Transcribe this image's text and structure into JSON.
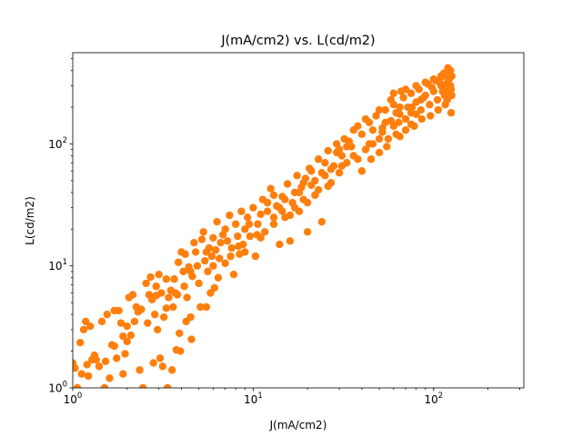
{
  "chart_data": {
    "type": "scatter",
    "title": "J(mA/cm2) vs. L(cd/m2)",
    "xlabel": "J(mA/cm2)",
    "ylabel": "L(cd/m2)",
    "x_scale": "log",
    "y_scale": "log",
    "xlim": [
      1,
      316
    ],
    "ylim": [
      1,
      560
    ],
    "x_ticks": [
      {
        "value": 1,
        "base": "10",
        "exp": "0"
      },
      {
        "value": 10,
        "base": "10",
        "exp": "1"
      },
      {
        "value": 100,
        "base": "10",
        "exp": "2"
      }
    ],
    "y_ticks": [
      {
        "value": 1,
        "base": "10",
        "exp": "0"
      },
      {
        "value": 10,
        "base": "10",
        "exp": "1"
      },
      {
        "value": 100,
        "base": "10",
        "exp": "2"
      }
    ],
    "grid": false,
    "marker_color": "#ff7f0e",
    "series": [
      {
        "points": [
          [
            1.0,
            1.6
          ],
          [
            1.03,
            1.45
          ],
          [
            1.06,
            1.0
          ],
          [
            1.08,
            0.95
          ],
          [
            1.1,
            2.35
          ],
          [
            1.12,
            1.3
          ],
          [
            1.15,
            3.0
          ],
          [
            1.18,
            3.5
          ],
          [
            1.2,
            1.55
          ],
          [
            1.22,
            1.25
          ],
          [
            1.28,
            1.7
          ],
          [
            1.32,
            1.85
          ],
          [
            1.35,
            1.7
          ],
          [
            1.45,
            3.5
          ],
          [
            1.5,
            1.0
          ],
          [
            1.52,
            1.65
          ],
          [
            1.55,
            4.0
          ],
          [
            1.6,
            1.2
          ],
          [
            1.65,
            2.25
          ],
          [
            1.7,
            4.3
          ],
          [
            1.75,
            1.75
          ],
          [
            1.8,
            4.3
          ],
          [
            1.85,
            3.4
          ],
          [
            1.9,
            2.65
          ],
          [
            1.95,
            1.9
          ],
          [
            2.0,
            2.4
          ],
          [
            2.05,
            5.5
          ],
          [
            2.1,
            2.7
          ],
          [
            2.15,
            5.8
          ],
          [
            2.2,
            3.5
          ],
          [
            2.25,
            4.6
          ],
          [
            2.35,
            1.4
          ],
          [
            2.4,
            4.4
          ],
          [
            2.45,
            1.0
          ],
          [
            2.55,
            7.2
          ],
          [
            2.6,
            3.4
          ],
          [
            2.65,
            5.8
          ],
          [
            2.7,
            8.1
          ],
          [
            2.75,
            5.3
          ],
          [
            2.8,
            1.6
          ],
          [
            2.85,
            4.0
          ],
          [
            2.9,
            5.7
          ],
          [
            2.95,
            3.0
          ],
          [
            3.0,
            8.5
          ],
          [
            3.05,
            1.75
          ],
          [
            3.1,
            6.0
          ],
          [
            3.15,
            1.5
          ],
          [
            3.2,
            3.8
          ],
          [
            3.3,
            7.8
          ],
          [
            3.35,
            1.0
          ],
          [
            3.4,
            5.5
          ],
          [
            3.5,
            6.3
          ],
          [
            3.55,
            1.4
          ],
          [
            3.6,
            4.6
          ],
          [
            3.65,
            7.8
          ],
          [
            3.75,
            2.05
          ],
          [
            3.8,
            5.8
          ],
          [
            3.85,
            10.7
          ],
          [
            3.9,
            2.8
          ],
          [
            3.95,
            2.0
          ],
          [
            4.0,
            13.0
          ],
          [
            4.1,
            9.0
          ],
          [
            4.15,
            6.8
          ],
          [
            4.2,
            12.5
          ],
          [
            4.25,
            3.5
          ],
          [
            4.3,
            5.5
          ],
          [
            4.4,
            9.8
          ],
          [
            4.5,
            3.8
          ],
          [
            4.55,
            2.5
          ],
          [
            4.6,
            8.2
          ],
          [
            4.7,
            15.5
          ],
          [
            4.8,
            13.0
          ],
          [
            4.9,
            10.0
          ],
          [
            5.0,
            7.2
          ],
          [
            5.1,
            4.6
          ],
          [
            5.2,
            16.5
          ],
          [
            5.3,
            19.0
          ],
          [
            5.4,
            11.0
          ],
          [
            5.5,
            4.6
          ],
          [
            5.6,
            9.0
          ],
          [
            5.7,
            14.0
          ],
          [
            5.8,
            6.0
          ],
          [
            5.9,
            12.0
          ],
          [
            6.0,
            17.0
          ],
          [
            6.1,
            6.6
          ],
          [
            6.2,
            13.5
          ],
          [
            6.3,
            23.0
          ],
          [
            6.4,
            8.0
          ],
          [
            6.5,
            11.5
          ],
          [
            6.6,
            15.5
          ],
          [
            6.8,
            18.0
          ],
          [
            7.0,
            10.5
          ],
          [
            7.2,
            16.0
          ],
          [
            7.4,
            26.0
          ],
          [
            7.6,
            14.0
          ],
          [
            7.8,
            8.5
          ],
          [
            8.0,
            22.0
          ],
          [
            8.2,
            17.5
          ],
          [
            8.4,
            12.5
          ],
          [
            8.6,
            28.0
          ],
          [
            8.8,
            15.0
          ],
          [
            9.0,
            20.0
          ],
          [
            9.3,
            25.0
          ],
          [
            9.6,
            17.5
          ],
          [
            10.0,
            30.0
          ],
          [
            10.3,
            12.0
          ],
          [
            10.6,
            22.0
          ],
          [
            11.0,
            26.5
          ],
          [
            11.3,
            35.0
          ],
          [
            11.6,
            19.0
          ],
          [
            12.0,
            28.0
          ],
          [
            12.5,
            43.0
          ],
          [
            13.0,
            22.0
          ],
          [
            13.5,
            31.0
          ],
          [
            14.0,
            15.0
          ],
          [
            14.5,
            37.0
          ],
          [
            15.0,
            25.0
          ],
          [
            15.5,
            47.0
          ],
          [
            16.0,
            16.0
          ],
          [
            16.5,
            33.0
          ],
          [
            17.0,
            40.0
          ],
          [
            17.5,
            55.0
          ],
          [
            18.0,
            28.0
          ],
          [
            18.5,
            44.0
          ],
          [
            19.0,
            35.0
          ],
          [
            19.5,
            52.0
          ],
          [
            20.0,
            19.0
          ],
          [
            20.5,
            63.0
          ],
          [
            21.0,
            46.0
          ],
          [
            22.0,
            38.0
          ],
          [
            23.0,
            75.0
          ],
          [
            24.0,
            23.0
          ],
          [
            25.0,
            55.0
          ],
          [
            26.0,
            88.0
          ],
          [
            27.0,
            48.0
          ],
          [
            28.0,
            66.0
          ],
          [
            29.0,
            100.0
          ],
          [
            30.0,
            58.0
          ],
          [
            31.0,
            80.0
          ],
          [
            32.0,
            110.0
          ],
          [
            33.0,
            70.0
          ],
          [
            35.0,
            95.0
          ],
          [
            36.0,
            130.0
          ],
          [
            38.0,
            75.0
          ],
          [
            40.0,
            120.0
          ],
          [
            42.0,
            90.0
          ],
          [
            44.0,
            150.0
          ],
          [
            46.0,
            100.0
          ],
          [
            48.0,
            170.0
          ],
          [
            50.0,
            85.0
          ],
          [
            52.0,
            135.0
          ],
          [
            54.0,
            190.0
          ],
          [
            56.0,
            110.0
          ],
          [
            58.0,
            155.0
          ],
          [
            60.0,
            210.0
          ],
          [
            62.0,
            120.0
          ],
          [
            65.0,
            175.0
          ],
          [
            68.0,
            240.0
          ],
          [
            70.0,
            130.0
          ],
          [
            72.0,
            200.0
          ],
          [
            75.0,
            260.0
          ],
          [
            78.0,
            140.0
          ],
          [
            80.0,
            220.0
          ],
          [
            83.0,
            280.0
          ],
          [
            86.0,
            160.0
          ],
          [
            90.0,
            250.0
          ],
          [
            93.0,
            310.0
          ],
          [
            96.0,
            170.0
          ],
          [
            100.0,
            270.0
          ],
          [
            103.0,
            330.0
          ],
          [
            106.0,
            190.0
          ],
          [
            110.0,
            300.0
          ],
          [
            113.0,
            360.0
          ],
          [
            116.0,
            210.0
          ],
          [
            120.0,
            320.0
          ],
          [
            122.0,
            380.0
          ],
          [
            124.0,
            400.0
          ],
          [
            125.0,
            180.0
          ],
          [
            126.0,
            250.0
          ],
          [
            125.0,
            280.0
          ],
          [
            60.0,
            260.0
          ],
          [
            65.0,
            200.0
          ],
          [
            70.0,
            280.0
          ],
          [
            75.0,
            180.0
          ],
          [
            80.0,
            300.0
          ],
          [
            85.0,
            190.0
          ],
          [
            90.0,
            320.0
          ],
          [
            95.0,
            210.0
          ],
          [
            100.0,
            340.0
          ],
          [
            105.0,
            230.0
          ],
          [
            110.0,
            360.0
          ],
          [
            115.0,
            250.0
          ],
          [
            118.0,
            290.0
          ],
          [
            122.0,
            340.0
          ],
          [
            124.0,
            300.0
          ],
          [
            126.0,
            360.0
          ],
          [
            121.0,
            260.0
          ],
          [
            119.0,
            230.0
          ],
          [
            117.0,
            310.0
          ],
          [
            112.0,
            270.0
          ],
          [
            40.0,
            60.0
          ],
          [
            45.0,
            75.0
          ],
          [
            50.0,
            110.0
          ],
          [
            55.0,
            95.0
          ],
          [
            60.0,
            140.0
          ],
          [
            65.0,
            115.0
          ],
          [
            70.0,
            160.0
          ],
          [
            75.0,
            145.0
          ],
          [
            80.0,
            175.0
          ],
          [
            85.0,
            230.0
          ],
          [
            30.0,
            90.0
          ],
          [
            34.0,
            105.0
          ],
          [
            38.0,
            140.0
          ],
          [
            42.0,
            160.0
          ],
          [
            46.0,
            130.0
          ],
          [
            50.0,
            190.0
          ],
          [
            54.0,
            150.0
          ],
          [
            58.0,
            230.0
          ],
          [
            62.0,
            180.0
          ],
          [
            66.0,
            270.0
          ],
          [
            15.0,
            35.0
          ],
          [
            17.0,
            30.0
          ],
          [
            19.0,
            48.0
          ],
          [
            21.0,
            60.0
          ],
          [
            23.0,
            42.0
          ],
          [
            25.0,
            70.0
          ],
          [
            27.0,
            62.0
          ],
          [
            29.0,
            85.0
          ],
          [
            31.0,
            66.0
          ],
          [
            33.0,
            95.0
          ],
          [
            9.0,
            13.0
          ],
          [
            11.0,
            17.0
          ],
          [
            13.0,
            25.0
          ],
          [
            14.0,
            30.0
          ],
          [
            16.0,
            26.0
          ],
          [
            18.0,
            40.0
          ],
          [
            20.0,
            33.0
          ],
          [
            22.0,
            50.0
          ],
          [
            24.0,
            58.0
          ],
          [
            26.0,
            45.0
          ],
          [
            7.0,
            20.0
          ],
          [
            7.5,
            12.0
          ],
          [
            8.3,
            14.5
          ],
          [
            9.5,
            22.0
          ],
          [
            10.5,
            18.0
          ],
          [
            12.0,
            33.0
          ],
          [
            13.0,
            38.0
          ],
          [
            14.5,
            28.0
          ],
          [
            6.0,
            10.0
          ],
          [
            5.5,
            13.0
          ],
          [
            4.5,
            9.0
          ],
          [
            3.7,
            6.0
          ],
          [
            3.3,
            4.5
          ],
          [
            2.9,
            6.8
          ],
          [
            2.3,
            4.2
          ],
          [
            2.0,
            3.2
          ],
          [
            1.7,
            2.2
          ],
          [
            1.4,
            1.5
          ],
          [
            1.25,
            3.2
          ],
          [
            1.9,
            1.3
          ],
          [
            36.0,
            80.0
          ],
          [
            44.0,
            100.0
          ],
          [
            52.0,
            125.0
          ],
          [
            64.0,
            150.0
          ],
          [
            76.0,
            200.0
          ],
          [
            88.0,
            240.0
          ],
          [
            98.0,
            290.0
          ],
          [
            108.0,
            320.0
          ],
          [
            114.0,
            380.0
          ],
          [
            120.0,
            420.0
          ]
        ]
      }
    ]
  }
}
